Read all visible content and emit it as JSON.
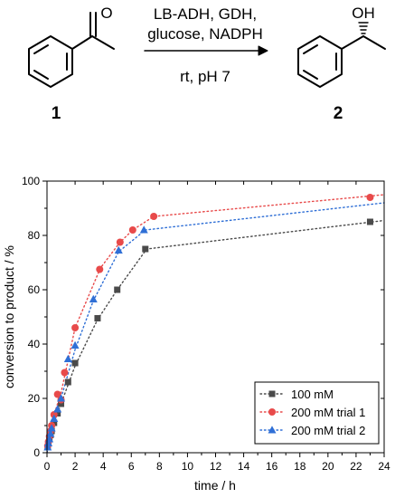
{
  "scheme": {
    "reactant_label": "1",
    "product_label": "2",
    "product_oh_label": "OH",
    "conditions_line1": "LB-ADH, GDH,",
    "conditions_line2": "glucose, NADPH",
    "conditions_line3": "rt, pH 7"
  },
  "chart_data": {
    "type": "scatter",
    "xlabel": "time / h",
    "ylabel": "conversion to product / %",
    "xlim": [
      0,
      24
    ],
    "ylim": [
      0,
      100
    ],
    "xticks": [
      0,
      2,
      4,
      6,
      8,
      10,
      12,
      14,
      16,
      18,
      20,
      22,
      24
    ],
    "yticks": [
      0,
      20,
      40,
      60,
      80,
      100
    ],
    "grid": false,
    "legend_position": "bottom-right",
    "series": [
      {
        "name": "100 mM",
        "marker": "square",
        "color": "#4a4a4a",
        "line": "dotted fit",
        "x": [
          0.05,
          0.1,
          0.17,
          0.25,
          0.33,
          0.5,
          0.75,
          1.0,
          1.5,
          2.0,
          3.6,
          5.0,
          7.0,
          23.0
        ],
        "y": [
          2.0,
          3.5,
          5.0,
          6.5,
          8.0,
          11.0,
          14.5,
          18.0,
          26.0,
          33.0,
          49.5,
          60.0,
          75.0,
          85.0
        ]
      },
      {
        "name": "200 mM trial 1",
        "marker": "circle",
        "color": "#e84a4a",
        "line": "dotted fit",
        "x": [
          0.05,
          0.1,
          0.17,
          0.25,
          0.33,
          0.5,
          0.75,
          1.0,
          1.25,
          2.0,
          3.75,
          5.2,
          6.1,
          7.6,
          23.0
        ],
        "y": [
          2.5,
          4.0,
          6.0,
          8.0,
          10.0,
          14.0,
          21.5,
          19.5,
          29.5,
          46.0,
          67.5,
          77.5,
          82.0,
          87.0,
          94.0
        ]
      },
      {
        "name": "200 mM trial 2",
        "marker": "triangle",
        "color": "#2f6fd6",
        "line": "dotted fit",
        "x": [
          0.05,
          0.1,
          0.17,
          0.25,
          0.33,
          0.5,
          0.75,
          1.0,
          1.5,
          2.0,
          3.3,
          5.1,
          6.9
        ],
        "y": [
          2.0,
          3.5,
          5.0,
          7.0,
          9.0,
          12.5,
          16.0,
          20.0,
          34.5,
          39.5,
          56.5,
          74.5,
          82.0
        ]
      }
    ],
    "fit_lines": [
      {
        "series": "100 mM",
        "x": [
          0,
          0.5,
          1,
          2,
          3.6,
          5,
          7.1,
          24
        ],
        "y": [
          0,
          11,
          18,
          32,
          49,
          60,
          75,
          85.5
        ]
      },
      {
        "series": "200 mM trial 1",
        "x": [
          0,
          0.5,
          1,
          2,
          3.8,
          5.2,
          6.1,
          7.6,
          24
        ],
        "y": [
          0,
          14,
          22,
          46,
          68,
          77.5,
          82,
          87,
          95
        ]
      },
      {
        "series": "200 mM trial 2",
        "x": [
          0,
          0.5,
          1,
          2,
          3.3,
          5.1,
          7,
          24
        ],
        "y": [
          0,
          12,
          20,
          38,
          56,
          74,
          82,
          92
        ]
      }
    ]
  }
}
